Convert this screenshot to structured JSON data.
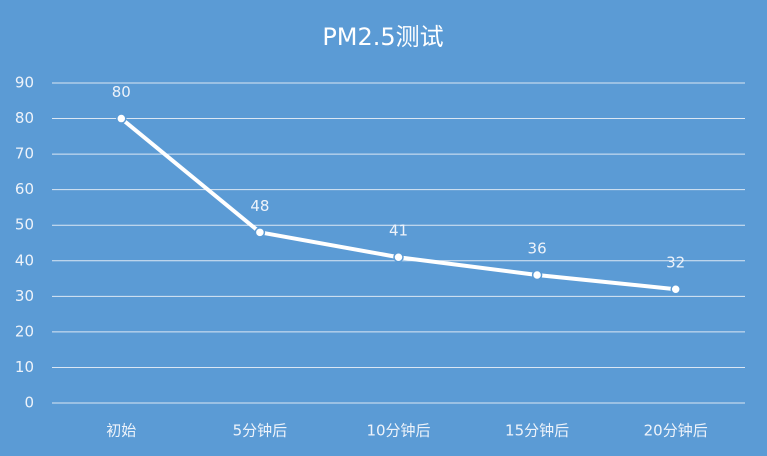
{
  "chart_data": {
    "type": "line",
    "title": "PM2.5测试",
    "categories": [
      "初始",
      "5分钟后",
      "10分钟后",
      "15分钟后",
      "20分钟后"
    ],
    "values": [
      80,
      48,
      41,
      36,
      32
    ],
    "color": "#ffffff",
    "ylim": [
      0,
      90
    ],
    "yticks": [
      0,
      10,
      20,
      30,
      40,
      50,
      60,
      70,
      80,
      90
    ],
    "grid": true
  }
}
